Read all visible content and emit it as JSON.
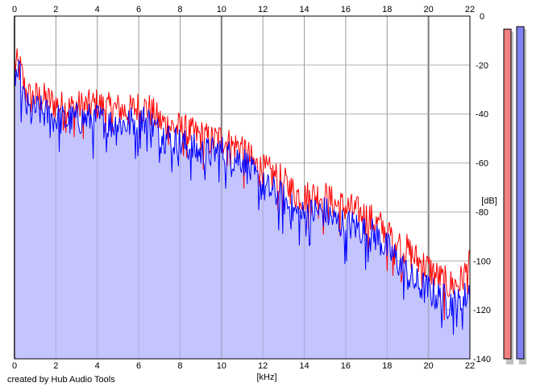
{
  "footer": {
    "credit": "created by Hub Audio Tools"
  },
  "chart_data": {
    "type": "area",
    "x_unit_label": "[kHz]",
    "y_unit_label": "[dB]",
    "xlim": [
      0,
      22
    ],
    "ylim": [
      -140,
      0
    ],
    "x_ticks": [
      0,
      2,
      4,
      6,
      8,
      10,
      12,
      14,
      16,
      18,
      20,
      22
    ],
    "y_ticks": [
      0,
      -20,
      -40,
      -60,
      -80,
      -100,
      -120,
      -140
    ],
    "x_tick_labels": [
      "0",
      "2",
      "4",
      "6",
      "8",
      "10",
      "12",
      "14",
      "16",
      "18",
      "20",
      "22"
    ],
    "y_tick_labels": [
      "0",
      "-20",
      "-40",
      "-60",
      "-80",
      "-100",
      "-120",
      "-140"
    ],
    "grid": true,
    "fill_color": "#c4c4ff",
    "series": [
      {
        "color": "#ff0000",
        "x": [
          0.1,
          0.3,
          0.5,
          0.8,
          1,
          1.5,
          2,
          2.5,
          3,
          3.5,
          4,
          4.5,
          5,
          5.5,
          6,
          6.5,
          7,
          7.5,
          8,
          8.5,
          9,
          9.5,
          10,
          10.5,
          11,
          11.5,
          12,
          12.5,
          13,
          13.5,
          14,
          14.5,
          15,
          15.5,
          16,
          16.5,
          17,
          17.5,
          18,
          18.5,
          19,
          19.5,
          20,
          20.5,
          21,
          21.5,
          22
        ],
        "values": [
          -20,
          -22,
          -30,
          -34,
          -33,
          -34,
          -36,
          -38,
          -37,
          -37,
          -36,
          -38,
          -38,
          -39,
          -37,
          -38,
          -43,
          -45,
          -46,
          -48,
          -49,
          -51,
          -50,
          -53,
          -53,
          -60,
          -63,
          -65,
          -68,
          -72,
          -74,
          -73,
          -74,
          -77,
          -78,
          -80,
          -82,
          -85,
          -88,
          -92,
          -96,
          -100,
          -103,
          -107,
          -110,
          -109,
          -102
        ]
      },
      {
        "color": "#0000ff",
        "x": [
          0.1,
          0.3,
          0.5,
          0.8,
          1,
          1.5,
          2,
          2.5,
          3,
          3.5,
          4,
          4.5,
          5,
          5.5,
          6,
          6.5,
          7,
          7.5,
          8,
          8.5,
          9,
          9.5,
          10,
          10.5,
          11,
          11.5,
          12,
          12.5,
          13,
          13.5,
          14,
          14.5,
          15,
          15.5,
          16,
          16.5,
          17,
          17.5,
          18,
          18.5,
          19,
          19.5,
          20,
          20.5,
          21,
          21.5,
          22
        ],
        "values": [
          -24,
          -26,
          -36,
          -40,
          -38,
          -40,
          -42,
          -43,
          -42,
          -42,
          -42,
          -44,
          -44,
          -44,
          -42,
          -43,
          -48,
          -50,
          -52,
          -54,
          -56,
          -56,
          -55,
          -58,
          -58,
          -65,
          -70,
          -72,
          -75,
          -80,
          -82,
          -80,
          -80,
          -84,
          -85,
          -86,
          -88,
          -90,
          -95,
          -100,
          -106,
          -110,
          -112,
          -115,
          -117,
          -118,
          -112
        ]
      }
    ],
    "level_meters": [
      {
        "color": "#f08080",
        "value_db": -4
      },
      {
        "color": "#8080f0",
        "value_db": -3
      }
    ]
  }
}
